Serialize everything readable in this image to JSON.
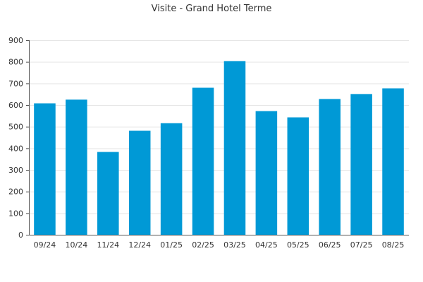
{
  "chart_data": {
    "type": "bar",
    "title": "Visite - Grand Hotel Terme",
    "xlabel": "",
    "ylabel": "",
    "categories": [
      "09/24",
      "10/24",
      "11/24",
      "12/24",
      "01/25",
      "02/25",
      "03/25",
      "04/25",
      "05/25",
      "06/25",
      "07/25",
      "08/25"
    ],
    "values": [
      608,
      625,
      383,
      481,
      516,
      680,
      803,
      572,
      543,
      628,
      651,
      677
    ],
    "ylim": [
      0,
      900
    ],
    "yticks": [
      0,
      100,
      200,
      300,
      400,
      500,
      600,
      700,
      800,
      900
    ],
    "grid": true,
    "legend": "none",
    "bar_color": "#0099d6",
    "grid_color": "#e6e6e6",
    "axis_color": "#555555"
  }
}
